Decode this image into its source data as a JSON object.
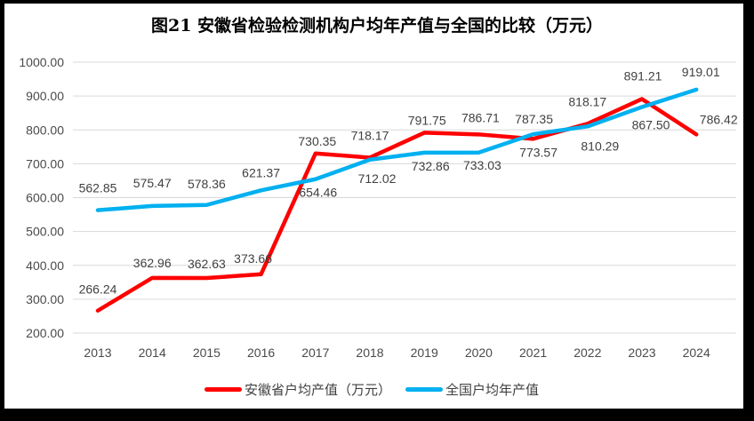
{
  "title": "图21 安徽省检验检测机构户均年产值与全国的比较（万元）",
  "legend": [
    {
      "label": "安徽省户均产值（万元）",
      "color": "#FF0000"
    },
    {
      "label": "全国户均年产值",
      "color": "#00B0F0"
    }
  ],
  "chart_data": {
    "type": "line",
    "title": "图21 安徽省检验检测机构户均年产值与全国的比较（万元）",
    "x": [
      "2013",
      "2014",
      "2015",
      "2016",
      "2017",
      "2018",
      "2019",
      "2020",
      "2021",
      "2022",
      "2023",
      "2024"
    ],
    "series": [
      {
        "id": "anhui",
        "name": "安徽省户均产值（万元）",
        "color": "#FF0000",
        "values": [
          266.24,
          362.96,
          362.63,
          373.66,
          730.35,
          718.17,
          791.75,
          786.71,
          773.57,
          818.17,
          891.21,
          786.42
        ],
        "label_offsets": [
          [
            0,
            -24
          ],
          [
            0,
            -17
          ],
          [
            0,
            -16
          ],
          [
            -9,
            -18
          ],
          [
            2,
            -14
          ],
          [
            0,
            -25
          ],
          [
            3,
            -14
          ],
          [
            2,
            -19
          ],
          [
            6,
            15
          ],
          [
            0,
            -25
          ],
          [
            1,
            -26
          ],
          [
            25,
            -17
          ]
        ]
      },
      {
        "id": "national",
        "name": "全国户均年产值",
        "color": "#00B0F0",
        "values": [
          562.85,
          575.47,
          578.36,
          621.37,
          654.46,
          712.02,
          732.86,
          733.03,
          787.35,
          810.29,
          867.5,
          919.01
        ],
        "label_offsets": [
          [
            0,
            -25
          ],
          [
            0,
            -26
          ],
          [
            0,
            -24
          ],
          [
            0,
            -20
          ],
          [
            3,
            15
          ],
          [
            8,
            21
          ],
          [
            7,
            15
          ],
          [
            4,
            14
          ],
          [
            1,
            -17
          ],
          [
            14,
            22
          ],
          [
            10,
            20
          ],
          [
            5,
            -20
          ]
        ]
      }
    ],
    "y_ticks": [
      "1000.00",
      "900.00",
      "800.00",
      "700.00",
      "600.00",
      "500.00",
      "400.00",
      "300.00",
      "200.00"
    ],
    "ylim": [
      200,
      1000
    ],
    "grid": true,
    "grid_color": "#D9D9D9",
    "legend_position": "bottom",
    "label_decimals": 2
  }
}
